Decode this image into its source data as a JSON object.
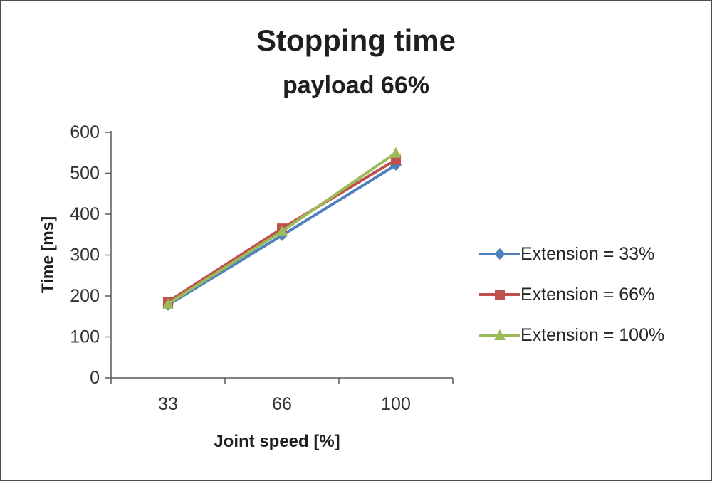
{
  "chart_data": {
    "type": "line",
    "title": "Stopping time",
    "subtitle": "payload 66%",
    "xlabel": "Joint speed [%]",
    "ylabel": "Time [ms]",
    "categories": [
      "33",
      "66",
      "100"
    ],
    "series": [
      {
        "name": "Extension = 33%",
        "color": "#4F81BD",
        "marker": "diamond",
        "values": [
          178,
          348,
          520
        ]
      },
      {
        "name": "Extension = 66%",
        "color": "#C0504D",
        "marker": "square",
        "values": [
          186,
          365,
          533
        ]
      },
      {
        "name": "Extension = 100%",
        "color": "#9BBB59",
        "marker": "triangle",
        "values": [
          181,
          358,
          550
        ]
      }
    ],
    "ylim": [
      0,
      600
    ],
    "ytick_step": 100,
    "grid": false,
    "legend_position": "right",
    "axis_color": "#595959"
  }
}
